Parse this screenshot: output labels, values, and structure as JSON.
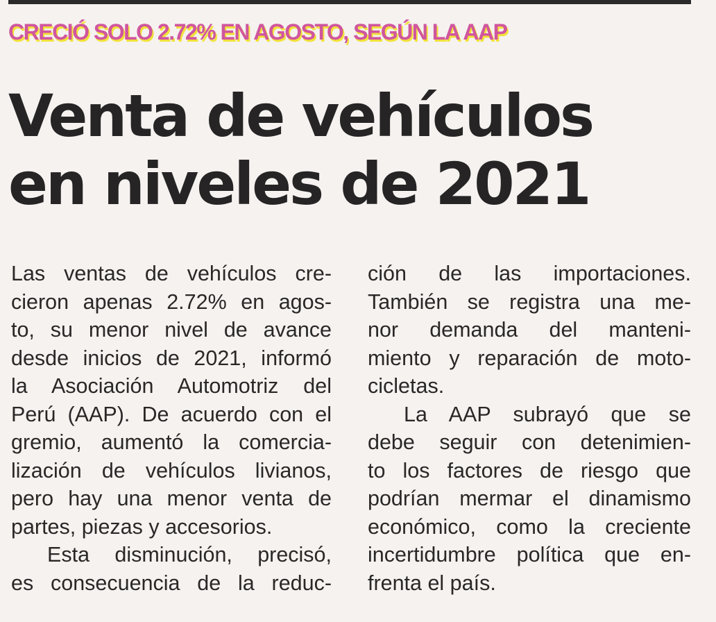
{
  "article": {
    "kicker": "CRECIÓ SOLO 2.72% EN AGOSTO, SEGÚN LA AAP",
    "headline": {
      "line1": "Venta de vehículos",
      "line2": "en niveles de 2021"
    },
    "columns": [
      {
        "lines": [
          "Las ventas de vehículos cre-",
          "cieron apenas 2.72% en agos-",
          "to, su menor nivel de avance",
          "desde inicios de 2021, informó",
          "la Asociación Automotriz del",
          "Perú (AAP). De acuerdo con el",
          "gremio, aumentó la comercia-",
          "lización de vehículos livianos,",
          "pero hay una menor venta de",
          "partes, piezas y accesorios.",
          "Esta disminución, precisó,",
          "es consecuencia de la reduc-"
        ]
      },
      {
        "lines": [
          "ción de las importaciones.",
          "También se registra una me-",
          "nor demanda del manteni-",
          "miento y reparación de moto-",
          "cicletas.",
          "La AAP subrayó que se",
          "debe seguir con detenimien-",
          "to los factores de riesgo que",
          "podrían mermar el dinamismo",
          "económico, como la creciente",
          "incertidumbre política que en-",
          "frenta el país."
        ]
      }
    ],
    "colors": {
      "kicker_text": "#d0569e",
      "kicker_shadow": "#f2e23a",
      "headline": "#262424",
      "body": "#2a2827",
      "paper": "#f5f2f0",
      "rule": "#2b2a2a"
    }
  }
}
